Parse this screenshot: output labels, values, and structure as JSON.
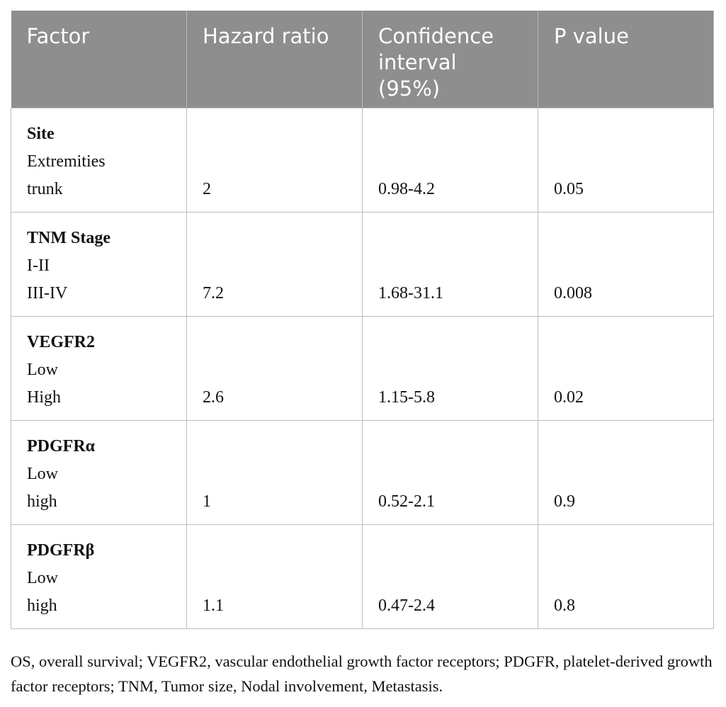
{
  "table": {
    "header": [
      "Factor",
      "Hazard ratio",
      "Confidence interval (95%)",
      "P value"
    ],
    "rows": [
      {
        "factor": "Site",
        "levels": [
          "Extremities",
          "trunk"
        ],
        "hazard_ratio": 2,
        "ci": "0.98-4.2",
        "p": 0.05
      },
      {
        "factor": "TNM Stage",
        "levels": [
          "I-II",
          "III-IV"
        ],
        "hazard_ratio": 7.2,
        "ci": "1.68-31.1",
        "p": 0.008
      },
      {
        "factor": "VEGFR2",
        "levels": [
          "Low",
          "High"
        ],
        "hazard_ratio": 2.6,
        "ci": "1.15-5.8",
        "p": 0.02
      },
      {
        "factor": "PDGFRα",
        "levels": [
          "Low",
          "high"
        ],
        "hazard_ratio": 1,
        "ci": "0.52-2.1",
        "p": 0.9
      },
      {
        "factor": "PDGFRβ",
        "levels": [
          "Low",
          "high"
        ],
        "hazard_ratio": 1.1,
        "ci": "0.47-2.4",
        "p": 0.8
      }
    ],
    "footnote": "OS, overall survival; VEGFR2, vascular endothelial growth factor receptors; PDGFR, platelet-derived growth factor receptors; TNM, Tumor size, Nodal involvement, Metastasis."
  }
}
